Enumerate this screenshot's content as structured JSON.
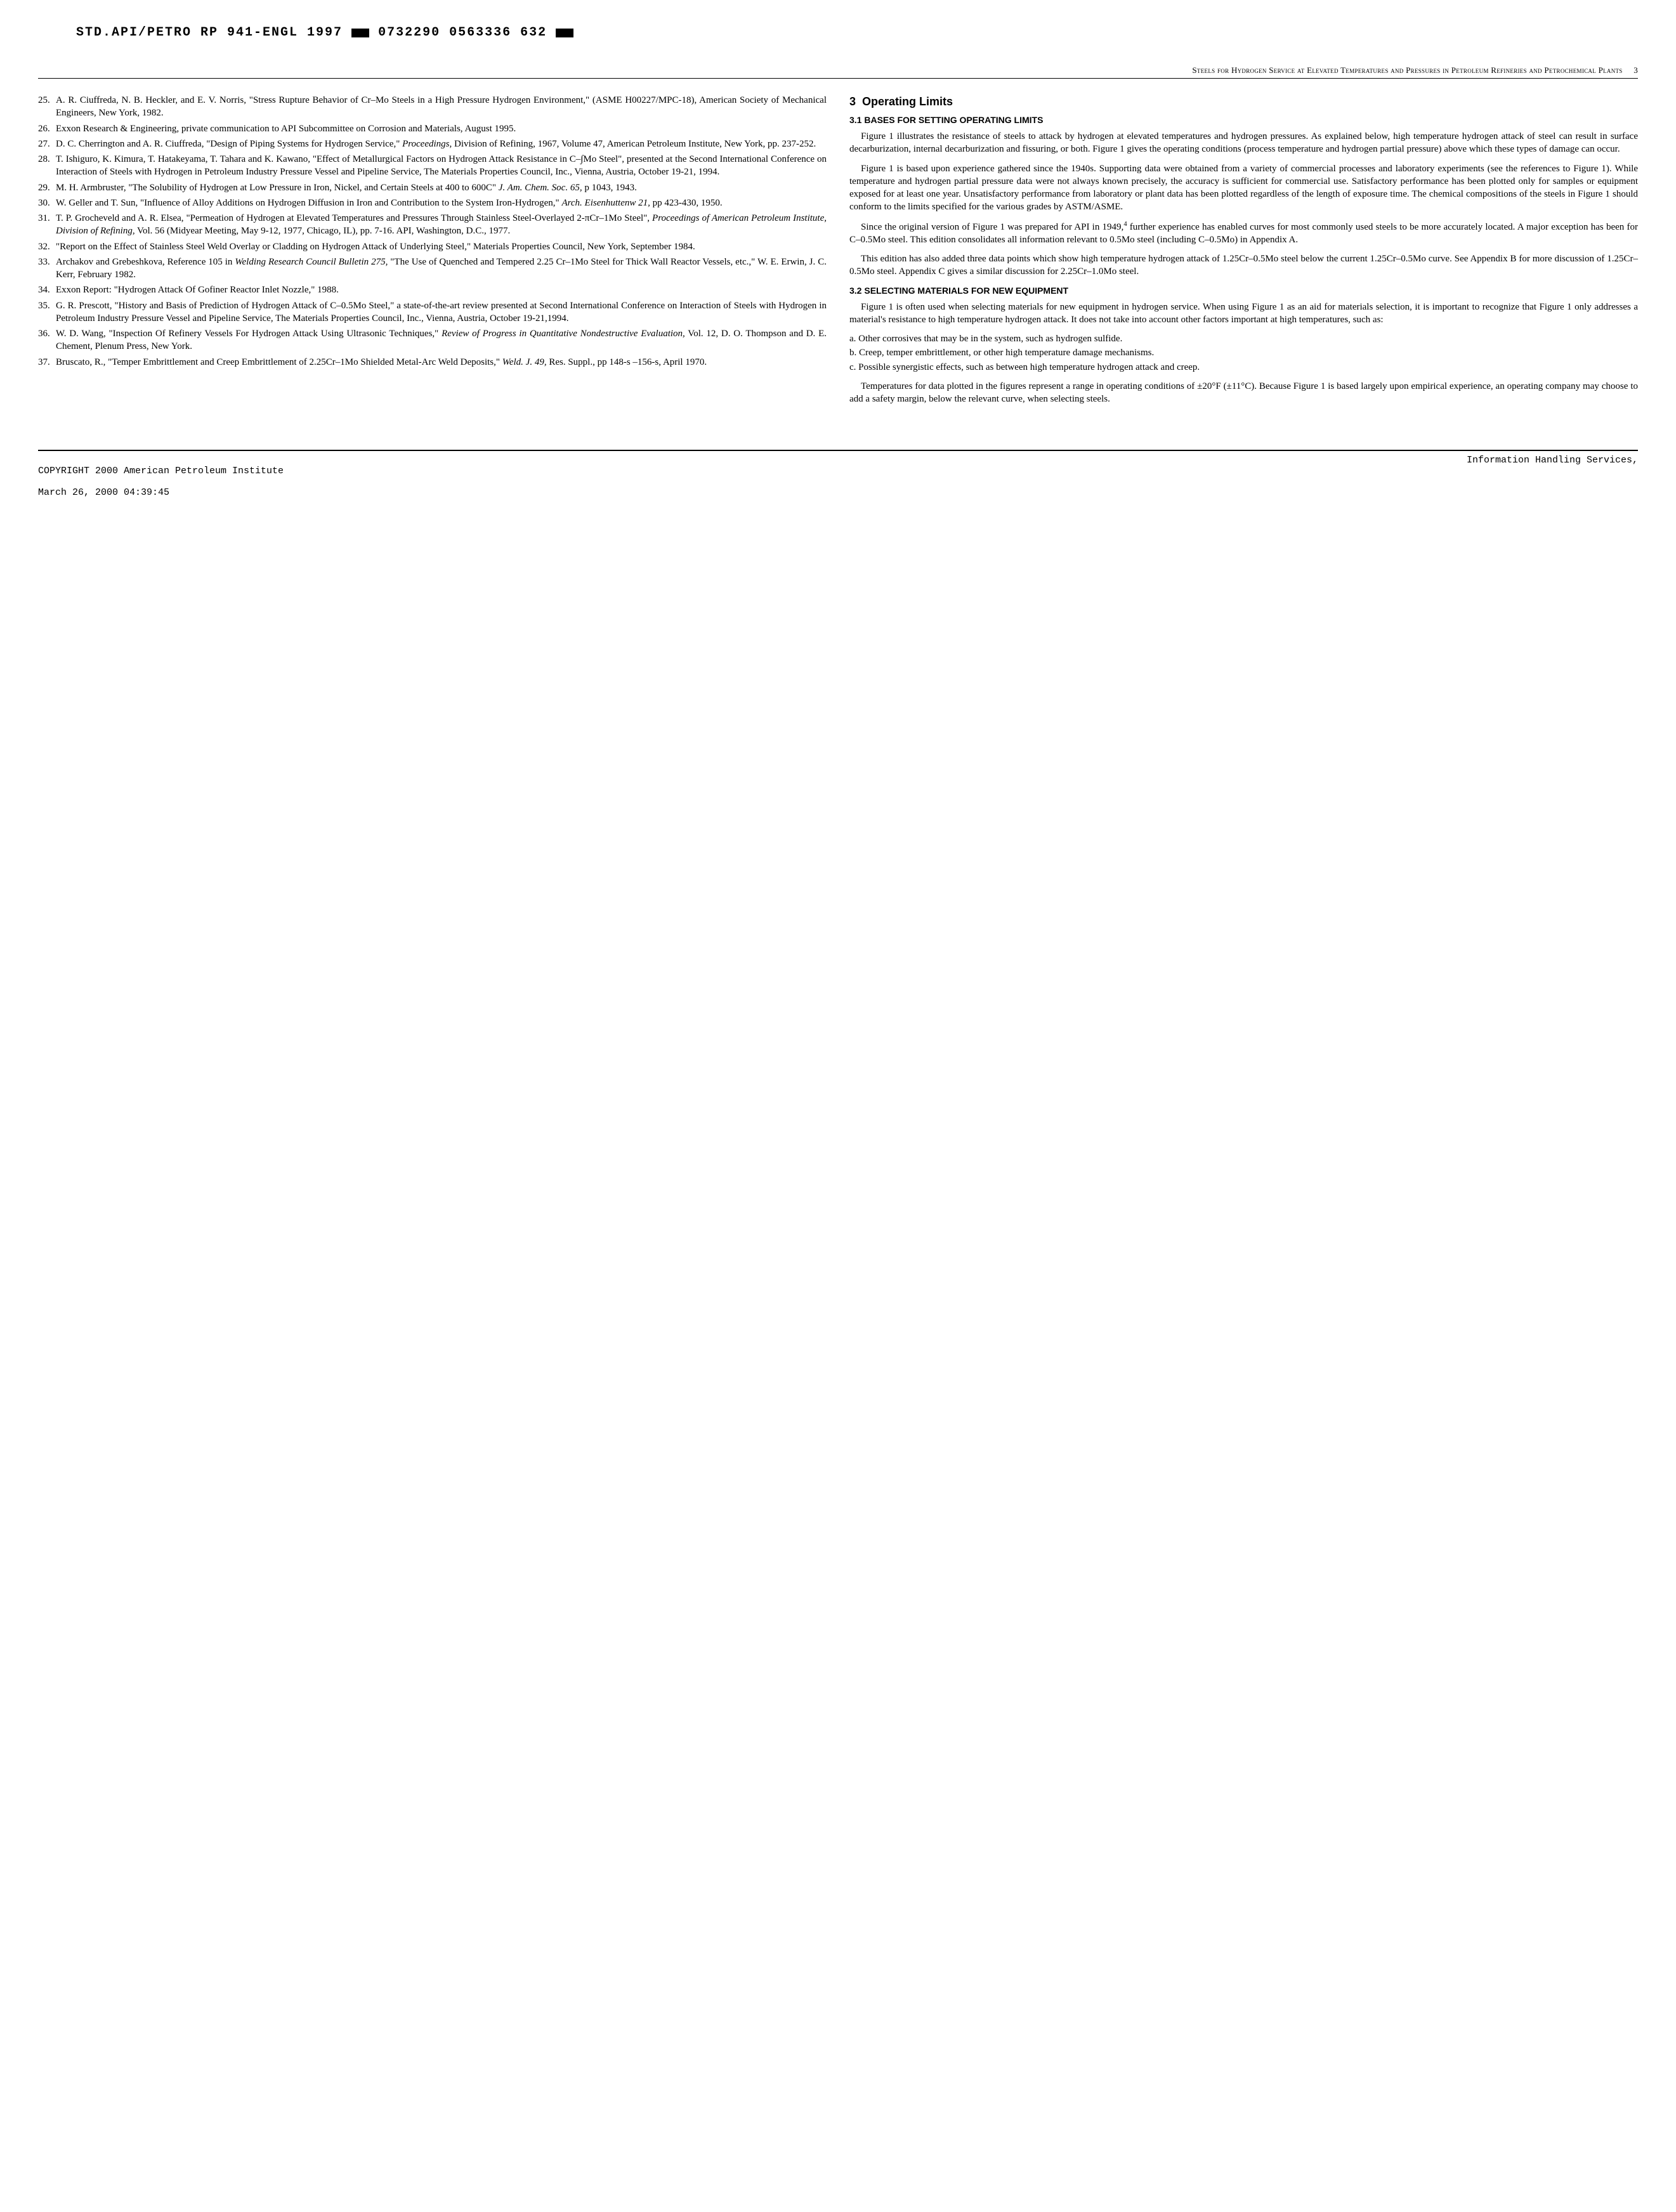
{
  "header": {
    "code_parts": [
      "STD.API/PETRO RP 941-ENGL 1997",
      "0732290 0563336 632"
    ]
  },
  "running_header": {
    "text": "Steels for Hydrogen Service at Elevated Temperatures and Pressures in Petroleum Refineries and Petrochemical Plants",
    "page": "3"
  },
  "references": [
    {
      "num": "25.",
      "text": "A. R. Ciuffreda, N. B. Heckler, and E. V. Norris, \"Stress Rupture Behavior of Cr–Mo Steels in a High Pressure Hydrogen Environment,\" (ASME H00227/MPC-18), American Society of Mechanical Engineers, New York, 1982."
    },
    {
      "num": "26.",
      "text": "Exxon Research & Engineering, private communication to API Subcommittee on Corrosion and Materials, August 1995."
    },
    {
      "num": "27.",
      "text": "D. C. Cherrington and A. R. Ciuffreda, \"Design of Piping Systems for Hydrogen Service,\" <i>Proceedings,</i> Division of Refining, 1967, Volume 47, American Petroleum Institute, New York, pp. 237-252."
    },
    {
      "num": "28.",
      "text": "T. Ishiguro, K. Kimura, T. Hatakeyama, T. Tahara and K. Kawano, \"Effect of Metallurgical Factors on Hydrogen Attack Resistance in C–∫Mo Steel\", presented at the Second International Conference on Interaction of Steels with Hydrogen in Petroleum Industry Pressure Vessel and Pipeline Service, The Materials Properties Council, Inc., Vienna, Austria, October 19-21, 1994."
    },
    {
      "num": "29.",
      "text": "M. H. Armbruster, \"The Solubility of Hydrogen at Low Pressure in Iron, Nickel, and Certain Steels at 400 to 600C\" <i>J. Am. Chem. Soc. 65,</i> p 1043, 1943."
    },
    {
      "num": "30.",
      "text": "W. Geller and T. Sun, \"Influence of Alloy Additions on Hydrogen Diffusion in Iron and Contribution to the System Iron-Hydrogen,\" <i>Arch. Eisenhuttenw 21,</i> pp 423-430, 1950."
    },
    {
      "num": "31.",
      "text": "T. P. Grocheveld and A. R. Elsea, \"Permeation of Hydrogen at Elevated Temperatures and Pressures Through Stainless Steel-Overlayed 2-πCr–1Mo Steel\", <i>Proceedings of American Petroleum Institute, Division of Refining,</i> Vol. 56 (Midyear Meeting, May 9-12, 1977, Chicago, IL), pp. 7-16. API, Washington, D.C., 1977."
    },
    {
      "num": "32.",
      "text": "\"Report on the Effect of Stainless Steel Weld Overlay or Cladding on Hydrogen Attack of Underlying Steel,\" Materials Properties Council, New York, September 1984."
    },
    {
      "num": "33.",
      "text": "Archakov and Grebeshkova, Reference 105 in <i>Welding Research Council Bulletin 275,</i> \"The Use of Quenched and Tempered 2.25 Cr–1Mo Steel for Thick Wall Reactor Vessels, etc.,\" W. E. Erwin, J. C. Kerr, February 1982."
    },
    {
      "num": "34.",
      "text": "Exxon Report: \"Hydrogen Attack Of Gofiner Reactor Inlet Nozzle,\" 1988."
    },
    {
      "num": "35.",
      "text": "G. R. Prescott, \"History and Basis of Prediction of Hydrogen Attack of C–0.5Mo Steel,\" a state-of-the-art review presented at Second International Conference on Interaction of Steels with Hydrogen in Petroleum Industry Pressure Vessel and Pipeline Service, The Materials Properties Council, Inc., Vienna, Austria, October 19-21,1994."
    },
    {
      "num": "36.",
      "text": "W. D. Wang, \"Inspection Of Refinery Vessels For Hydrogen Attack Using Ultrasonic Techniques,\" <i>Review of Progress in Quantitative Nondestructive Evaluation,</i> Vol. 12, D. O. Thompson and D. E. Chement, Plenum Press, New York."
    },
    {
      "num": "37.",
      "text": "Bruscato, R., \"Temper Embrittlement and Creep Embrittlement of 2.25Cr–1Mo Shielded Metal-Arc Weld Deposits,\" <i>Weld. J. 49,</i> Res. Suppl., pp 148-s –156-s, April 1970."
    }
  ],
  "section": {
    "number": "3",
    "title": "Operating Limits",
    "subsections": [
      {
        "number": "3.1",
        "title": "BASES FOR SETTING OPERATING LIMITS",
        "paragraphs": [
          "Figure 1 illustrates the resistance of steels to attack by hydrogen at elevated temperatures and hydrogen pressures. As explained below, high temperature hydrogen attack of steel can result in surface decarburization, internal decarburization and fissuring, or both. Figure 1 gives the operating conditions (process temperature and hydrogen partial pressure) above which these types of damage can occur.",
          "Figure 1 is based upon experience gathered since the 1940s. Supporting data were obtained from a variety of commercial processes and laboratory experiments (see the references to Figure 1). While temperature and hydrogen partial pressure data were not always known precisely, the accuracy is sufficient for commercial use. Satisfactory performance has been plotted only for samples or equipment exposed for at least one year. Unsatisfactory performance from laboratory or plant data has been plotted regardless of the length of exposure time. The chemical compositions of the steels in Figure 1 should conform to the limits specified for the various grades by ASTM/ASME.",
          "Since the original version of Figure 1 was prepared for API in 1949,<sup>4</sup> further experience has enabled curves for most commonly used steels to be more accurately located. A major exception has been for C–0.5Mo steel. This edition consolidates all information relevant to 0.5Mo steel (including C–0.5Mo) in Appendix A.",
          "This edition has also added three data points which show high temperature hydrogen attack of 1.25Cr–0.5Mo steel below the current 1.25Cr–0.5Mo curve. See Appendix B for more discussion of 1.25Cr–0.5Mo steel. Appendix C gives a similar discussion for 2.25Cr–1.0Mo steel."
        ]
      },
      {
        "number": "3.2",
        "title": "SELECTING MATERIALS FOR NEW EQUIPMENT",
        "paragraphs": [
          "Figure 1 is often used when selecting materials for new equipment in hydrogen service. When using Figure 1 as an aid for materials selection, it is important to recognize that Figure 1 only addresses a material's resistance to high temperature hydrogen attack. It does not take into account other factors important at high temperatures, such as:"
        ],
        "list_items": [
          "a. Other corrosives that may be in the system, such as hydrogen sulfide.",
          "b. Creep, temper embrittlement, or other high temperature damage mechanisms.",
          "c. Possible synergistic effects, such as between high temperature hydrogen attack and creep."
        ],
        "closing_paragraph": "Temperatures for data plotted in the figures represent a range in operating conditions of ±20°F (±11°C). Because Figure 1 is based largely upon empirical experience, an operating company may choose to add a safety margin, below the relevant curve, when selecting steels."
      }
    ]
  },
  "footer": {
    "left_line1": "COPYRIGHT 2000 American Petroleum Institute",
    "left_line2": "March 26, 2000    04:39:45",
    "right": "Information Handling Services,"
  }
}
